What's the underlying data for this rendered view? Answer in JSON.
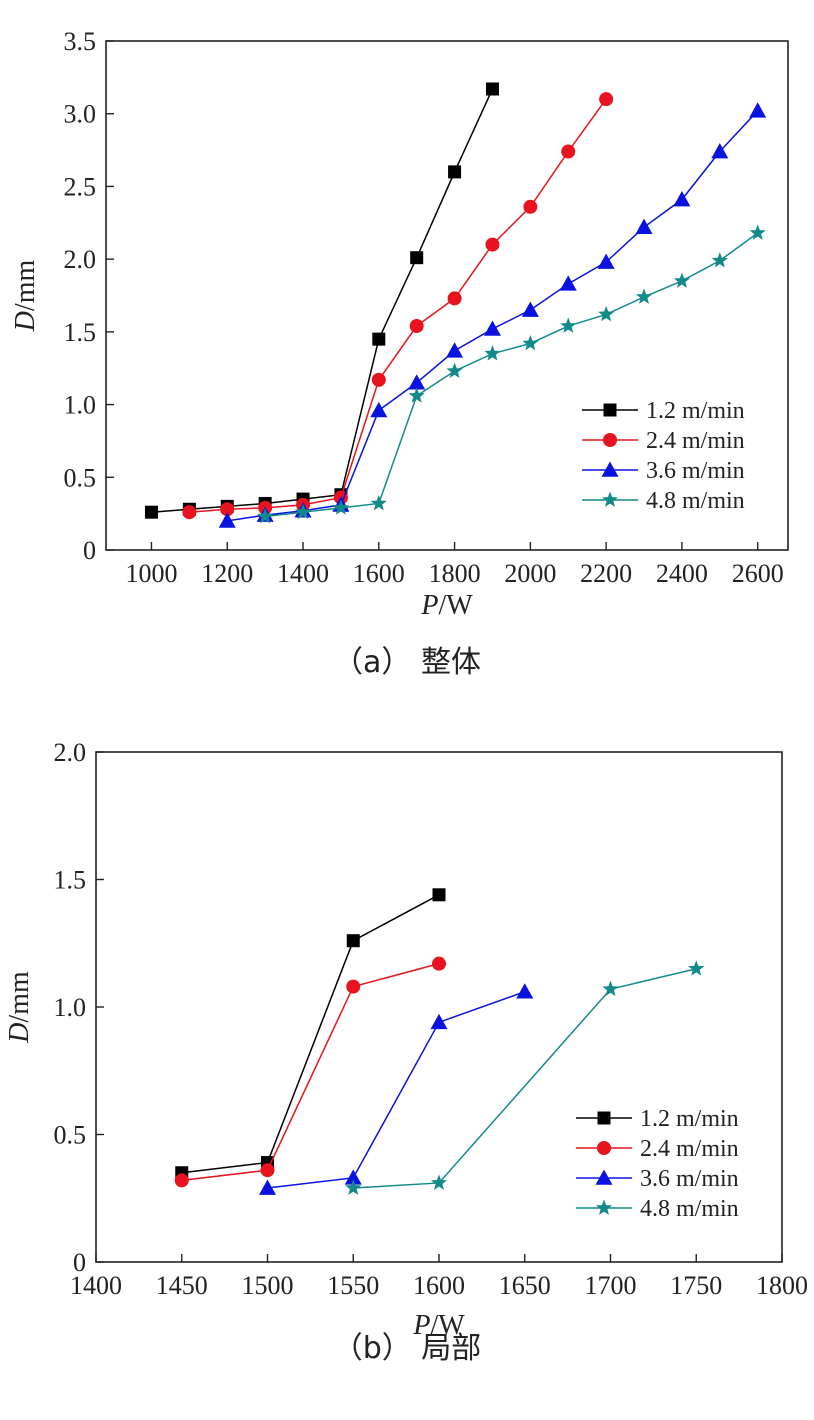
{
  "chart_data": [
    {
      "type": "line",
      "caption": "（a） 整体",
      "xlabel_var": "P",
      "xlabel_unit": "/W",
      "ylabel_var": "D",
      "ylabel_unit": "/mm",
      "xlim": [
        880,
        2680
      ],
      "ylim": [
        0,
        3.5
      ],
      "xticks": [
        1000,
        1200,
        1400,
        1600,
        1800,
        2000,
        2200,
        2400,
        2600
      ],
      "yticks": [
        0,
        0.5,
        1.0,
        1.5,
        2.0,
        2.5,
        3.0,
        3.5
      ],
      "ytick_labels": [
        "0",
        "0.5",
        "1.0",
        "1.5",
        "2.0",
        "2.5",
        "3.0",
        "3.5"
      ],
      "xtick_labels": [
        "1000",
        "1200",
        "1400",
        "1600",
        "1800",
        "2000",
        "2200",
        "2400",
        "2600"
      ],
      "grid": false,
      "legend_position": "bottom-right",
      "series": [
        {
          "name": "1.2 m/min",
          "color": "#000000",
          "marker": "square",
          "x": [
            1000,
            1100,
            1200,
            1300,
            1400,
            1500,
            1600,
            1700,
            1800,
            1900
          ],
          "y": [
            0.26,
            0.28,
            0.3,
            0.32,
            0.35,
            0.38,
            1.45,
            2.01,
            2.6,
            3.17
          ]
        },
        {
          "name": "2.4 m/min",
          "color": "#e8131f",
          "marker": "circle",
          "x": [
            1100,
            1200,
            1300,
            1400,
            1500,
            1600,
            1700,
            1800,
            1900,
            2000,
            2100,
            2200
          ],
          "y": [
            0.26,
            0.28,
            0.29,
            0.31,
            0.36,
            1.17,
            1.54,
            1.73,
            2.1,
            2.36,
            2.74,
            3.1
          ]
        },
        {
          "name": "3.6 m/min",
          "color": "#0a12e0",
          "marker": "triangle",
          "x": [
            1200,
            1300,
            1400,
            1500,
            1600,
            1700,
            1800,
            1900,
            2000,
            2100,
            2200,
            2300,
            2400,
            2500,
            2600
          ],
          "y": [
            0.2,
            0.24,
            0.27,
            0.31,
            0.96,
            1.15,
            1.37,
            1.52,
            1.65,
            1.83,
            1.98,
            2.22,
            2.41,
            2.74,
            3.02
          ]
        },
        {
          "name": "4.8 m/min",
          "color": "#138a8a",
          "marker": "star",
          "x": [
            1300,
            1400,
            1500,
            1600,
            1700,
            1800,
            1900,
            2000,
            2100,
            2200,
            2300,
            2400,
            2500,
            2600
          ],
          "y": [
            0.23,
            0.26,
            0.29,
            0.32,
            1.06,
            1.23,
            1.35,
            1.42,
            1.54,
            1.62,
            1.74,
            1.85,
            1.99,
            2.18
          ]
        }
      ]
    },
    {
      "type": "line",
      "caption": "（b） 局部",
      "xlabel_var": "P",
      "xlabel_unit": "/W",
      "ylabel_var": "D",
      "ylabel_unit": "/mm",
      "xlim": [
        1400,
        1800
      ],
      "ylim": [
        0,
        2.0
      ],
      "xticks": [
        1400,
        1450,
        1500,
        1550,
        1600,
        1650,
        1700,
        1750,
        1800
      ],
      "yticks": [
        0,
        0.5,
        1.0,
        1.5,
        2.0
      ],
      "ytick_labels": [
        "0",
        "0.5",
        "1.0",
        "1.5",
        "2.0"
      ],
      "xtick_labels": [
        "1400",
        "1450",
        "1500",
        "1550",
        "1600",
        "1650",
        "1700",
        "1750",
        "1800"
      ],
      "grid": false,
      "legend_position": "bottom-right",
      "series": [
        {
          "name": "1.2 m/min",
          "color": "#000000",
          "marker": "square",
          "x": [
            1450,
            1500,
            1550,
            1600
          ],
          "y": [
            0.35,
            0.39,
            1.26,
            1.44
          ]
        },
        {
          "name": "2.4 m/min",
          "color": "#e8131f",
          "marker": "circle",
          "x": [
            1450,
            1500,
            1550,
            1600
          ],
          "y": [
            0.32,
            0.36,
            1.08,
            1.17
          ]
        },
        {
          "name": "3.6 m/min",
          "color": "#0a12e0",
          "marker": "triangle",
          "x": [
            1500,
            1550,
            1600,
            1650
          ],
          "y": [
            0.29,
            0.33,
            0.94,
            1.06
          ]
        },
        {
          "name": "4.8 m/min",
          "color": "#138a8a",
          "marker": "star",
          "x": [
            1550,
            1600,
            1700,
            1750
          ],
          "y": [
            0.29,
            0.31,
            1.07,
            1.15
          ]
        }
      ]
    }
  ]
}
